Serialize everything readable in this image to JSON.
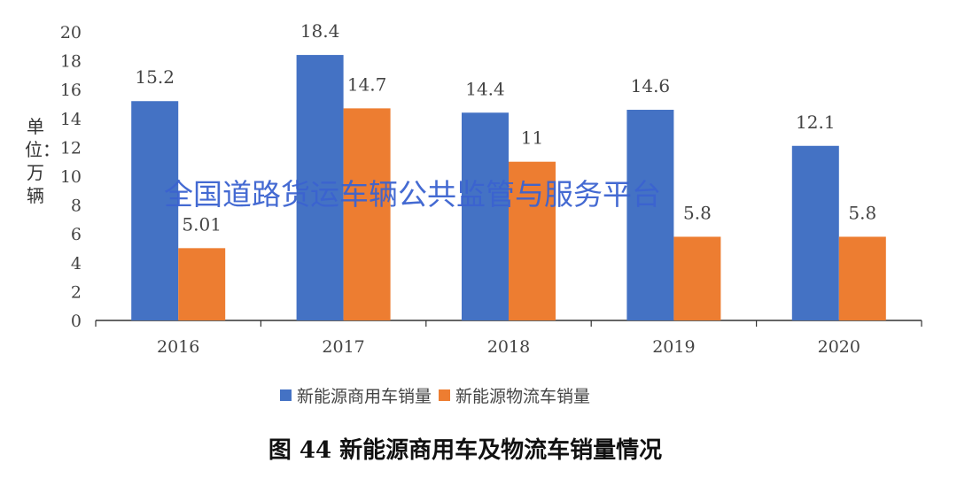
{
  "chart_data": {
    "type": "bar",
    "categories": [
      "2016",
      "2017",
      "2018",
      "2019",
      "2020"
    ],
    "series": [
      {
        "name": "新能源商用车销量",
        "values": [
          15.2,
          18.4,
          14.4,
          14.6,
          12.1
        ],
        "labels": [
          "15.2",
          "18.4",
          "14.4",
          "14.6",
          "12.1"
        ],
        "color": "#4472C4"
      },
      {
        "name": "新能源物流车销量",
        "values": [
          5.01,
          14.7,
          11,
          5.8,
          5.8
        ],
        "labels": [
          "5.01",
          "14.7",
          "11",
          "5.8",
          "5.8"
        ],
        "color": "#ED7D31"
      }
    ],
    "ylabel": "单位：万辆",
    "ylim": [
      0,
      20
    ],
    "yticks": [
      "0",
      "2",
      "4",
      "6",
      "8",
      "10",
      "12",
      "14",
      "16",
      "18",
      "20"
    ],
    "grid": false,
    "legend": "bottom",
    "title": "图 44  新能源商用车及物流车销量情况"
  },
  "watermark": "全国道路货运车辆公共监管与服务平台"
}
